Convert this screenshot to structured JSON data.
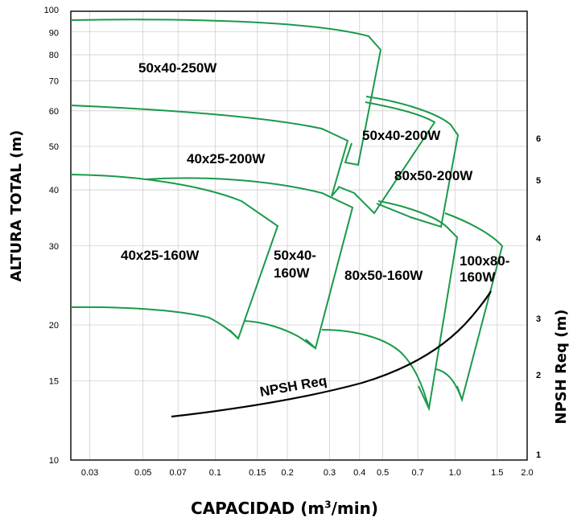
{
  "chart_data": {
    "type": "line",
    "xlabel_prefix": "CAPACIDAD (m",
    "xlabel_sup": "3",
    "xlabel_suffix": "/min)",
    "ylabel": "ALTURA TOTAL (m)",
    "y2label": "NPSH Req (m)",
    "x_scale": "log",
    "y_scale": "log",
    "xlim": [
      0.025,
      2.0
    ],
    "ylim": [
      10,
      100
    ],
    "x_ticks": [
      "0.03",
      "0.05",
      "0.07",
      "0.1",
      "0.15",
      "0.2",
      "0.3",
      "0.4",
      "0.5",
      "0.7",
      "1.0",
      "1.5",
      "2.0"
    ],
    "y_ticks": [
      "10",
      "15",
      "20",
      "30",
      "40",
      "50",
      "60",
      "70",
      "80",
      "90",
      "100"
    ],
    "y2_ticks": [
      "1",
      "2",
      "3",
      "4",
      "5",
      "6"
    ],
    "grid": true,
    "curve_color": "#1a9a4a",
    "npsh_color": "#000000",
    "series": [
      {
        "name": "50x40-250W",
        "x": [
          0.025,
          0.1,
          0.2,
          0.3,
          0.4,
          0.47,
          0.5,
          0.52
        ],
        "y": [
          92,
          91.5,
          90.5,
          89,
          87,
          85,
          83,
          81
        ]
      },
      {
        "name": "40x25-200W",
        "x": [
          0.025,
          0.1,
          0.2,
          0.3,
          0.37,
          0.41
        ],
        "y": [
          60,
          58.5,
          56,
          53.5,
          51,
          49
        ]
      },
      {
        "name": "50x40-200W",
        "x": [
          0.45,
          0.5,
          0.55,
          0.6,
          0.65
        ],
        "y": [
          61,
          60,
          58,
          55.5,
          53
        ]
      },
      {
        "name": "80x50-200W",
        "x": [
          0.47,
          0.6,
          0.8,
          0.95,
          1.05
        ],
        "y": [
          62,
          60.5,
          58,
          55.5,
          52
        ]
      },
      {
        "name": "40x25-160W",
        "x": [
          0.025,
          0.07,
          0.1,
          0.15,
          0.2
        ],
        "y": [
          41.5,
          40.5,
          39,
          36,
          32
        ]
      },
      {
        "name": "50x40-160W",
        "x": [
          0.06,
          0.1,
          0.2,
          0.3,
          0.35,
          0.42
        ],
        "y": [
          41,
          41,
          40,
          38.5,
          37.5,
          35
        ]
      },
      {
        "name": "80x50-160W",
        "x": [
          0.5,
          0.65,
          0.8,
          1.0
        ],
        "y": [
          35.5,
          34.5,
          32.5,
          30
        ]
      },
      {
        "name": "100x80-160W",
        "x": [
          0.9,
          1.2,
          1.42,
          1.53
        ],
        "y": [
          33.5,
          32,
          30.5,
          29
        ]
      },
      {
        "name": "40x25-160W (small)",
        "x": [
          0.025,
          0.07,
          0.1,
          0.12,
          0.14
        ],
        "y": [
          21,
          20.5,
          19.5,
          18.5,
          17.5
        ]
      },
      {
        "name": "50x40-160W (small)",
        "x": [
          0.15,
          0.2,
          0.25,
          0.28
        ],
        "y": [
          19.5,
          19,
          18,
          17
        ]
      },
      {
        "name": "80x50-160W (small)",
        "x": [
          0.3,
          0.4,
          0.5,
          0.6,
          0.7,
          0.78
        ],
        "y": [
          18.5,
          18.2,
          17.5,
          16.5,
          15,
          13
        ]
      },
      {
        "name": "100x80-160W (small)",
        "x": [
          0.95,
          1.05,
          1.12
        ],
        "y": [
          15.8,
          14.5,
          13.2
        ]
      },
      {
        "name": "NPSH Req",
        "x": [
          0.075,
          0.15,
          0.3,
          0.5,
          0.8,
          1.0,
          1.2,
          1.4,
          1.5
        ],
        "y2": [
          1.45,
          1.68,
          1.95,
          2.2,
          2.55,
          2.82,
          3.15,
          3.5,
          3.7
        ]
      }
    ],
    "model_labels": [
      "50x40-250W",
      "40x25-200W",
      "50x40-200W",
      "80x50-200W",
      "40x25-160W",
      "50x40-",
      "160W",
      "80x50-160W",
      "100x80-",
      "160W"
    ],
    "npsh_label": "NPSH Req"
  }
}
